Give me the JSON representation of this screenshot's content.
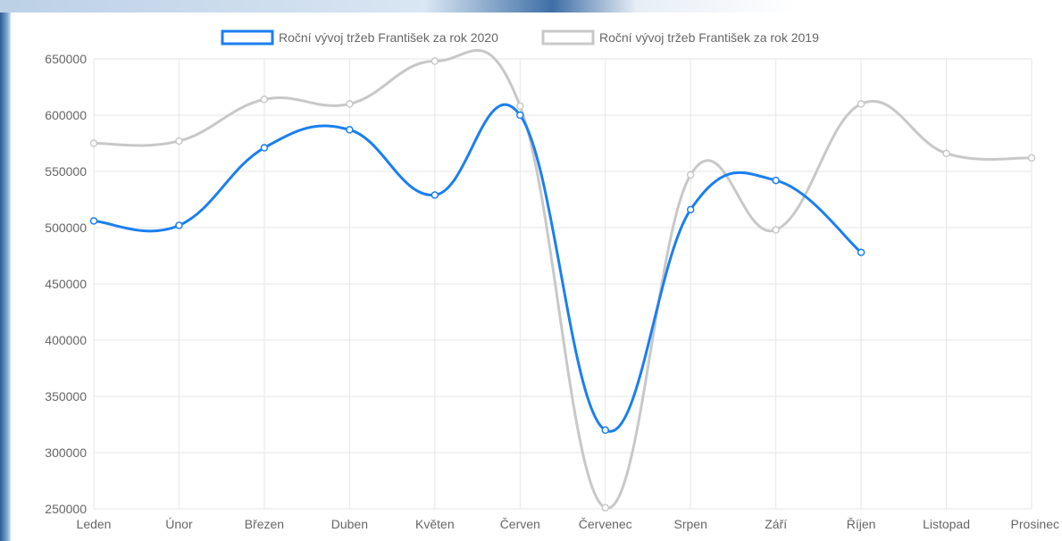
{
  "chart_data": {
    "type": "line",
    "categories": [
      "Leden",
      "Únor",
      "Březen",
      "Duben",
      "Květen",
      "Červen",
      "Červenec",
      "Srpen",
      "Září",
      "Říjen",
      "Listopad",
      "Prosinec"
    ],
    "series": [
      {
        "name": "Roční vývoj tržeb František za rok 2020",
        "color": "#1a7ff0",
        "values": [
          506000,
          502000,
          571000,
          587000,
          529000,
          600000,
          320000,
          516000,
          542000,
          478000,
          null,
          null
        ]
      },
      {
        "name": "Roční vývoj tržeb František za rok 2019",
        "color": "#c8c8c8",
        "values": [
          575000,
          577000,
          614000,
          610000,
          648000,
          608000,
          251000,
          547000,
          498000,
          610000,
          566000,
          562000
        ]
      }
    ],
    "ylim": [
      250000,
      650000
    ],
    "yticks": [
      "650000",
      "600000",
      "550000",
      "500000",
      "450000",
      "400000",
      "350000",
      "300000",
      "250000"
    ],
    "grid": true,
    "legend_position": "top-center"
  }
}
